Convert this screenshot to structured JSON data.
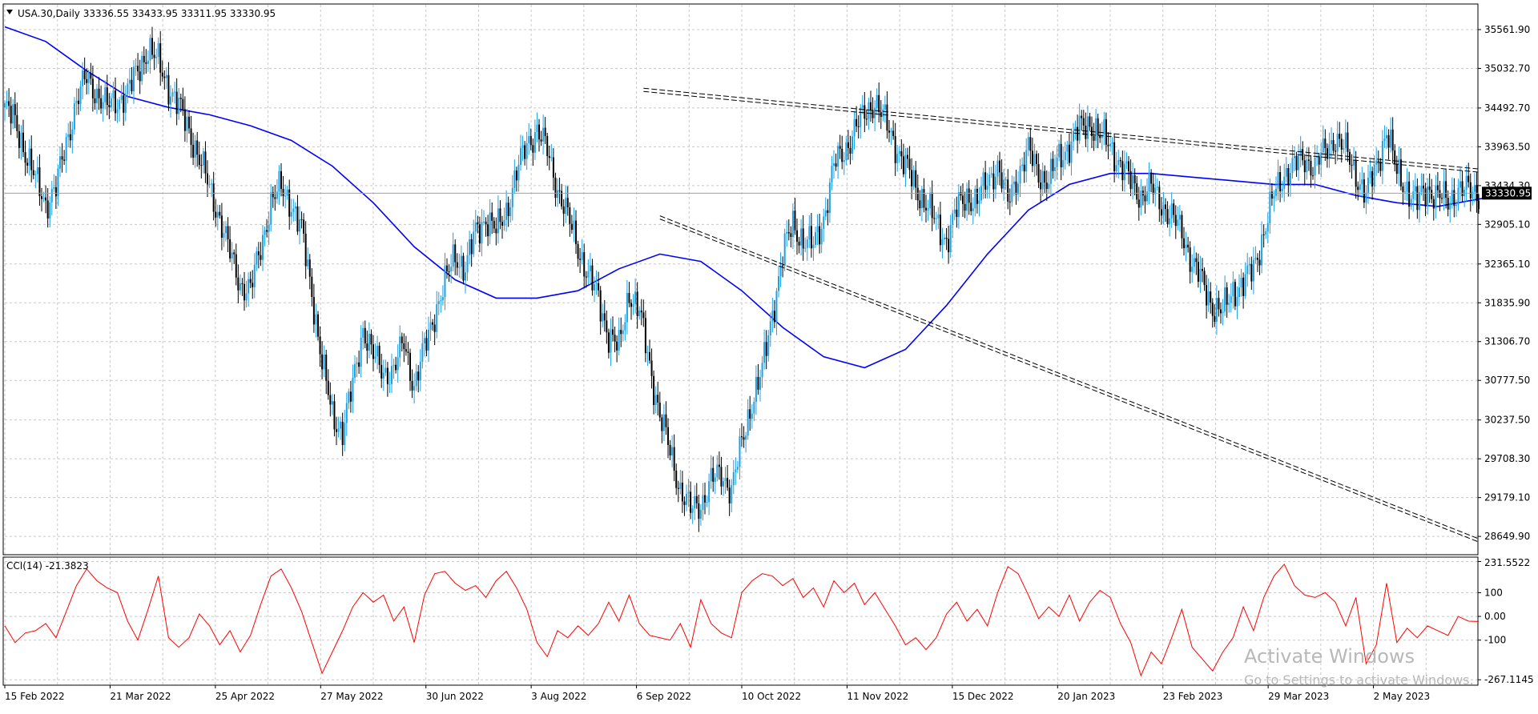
{
  "header": {
    "main_title": "USA.30,Daily  33336.55 33433.95 33311.95 33330.95",
    "indicator_title": "CCI(14) -21.3823"
  },
  "colors": {
    "bull_candle": "#1ea0e6",
    "bear_candle": "#000000",
    "moving_average": "#0000ff",
    "cci_line": "#ff0000",
    "grid": "#c8c8c8",
    "trendline": "#000000",
    "price_tag_bg": "#000000",
    "price_tag_text": "#ffffff"
  },
  "watermark": {
    "title": "Activate Windows",
    "subtitle": "Go to Settings to activate Windows."
  },
  "chart_data": [
    {
      "type": "candlestick",
      "symbol": "USA.30",
      "timeframe": "Daily",
      "ohlc_last": {
        "open": 33336.55,
        "high": 33433.95,
        "low": 33311.95,
        "close": 33330.95
      },
      "current_price_label": "33330.95",
      "ylim": [
        28400,
        35900
      ],
      "y_ticks": [
        28649.9,
        29179.1,
        29708.3,
        30237.5,
        30777.5,
        31306.7,
        31835.9,
        32365.1,
        32905.1,
        33434.3,
        33963.5,
        34492.7,
        35032.7,
        35561.9
      ],
      "y_tick_labels": [
        "28649.90",
        "29179.10",
        "29708.30",
        "30237.50",
        "30777.50",
        "31306.70",
        "31835.90",
        "32365.10",
        "32905.10",
        "33434.30",
        "33963.50",
        "34492.70",
        "35032.70",
        "35561.90"
      ],
      "x_tick_labels": [
        "15 Feb 2022",
        "21 Mar 2022",
        "25 Apr 2022",
        "27 May 2022",
        "30 Jun 2022",
        "3 Aug 2022",
        "6 Sep 2022",
        "10 Oct 2022",
        "11 Nov 2022",
        "15 Dec 2022",
        "20 Jan 2023",
        "23 Feb 2023",
        "29 Mar 2023",
        "2 May 2023"
      ],
      "grid": true,
      "price_path": [
        [
          0,
          34500
        ],
        [
          5,
          34300
        ],
        [
          10,
          33900
        ],
        [
          15,
          33500
        ],
        [
          20,
          33200
        ],
        [
          25,
          33400
        ],
        [
          30,
          34000
        ],
        [
          35,
          34600
        ],
        [
          40,
          34900
        ],
        [
          45,
          34700
        ],
        [
          50,
          34500
        ],
        [
          55,
          34600
        ],
        [
          60,
          34700
        ],
        [
          65,
          35000
        ],
        [
          70,
          35300
        ],
        [
          75,
          35100
        ],
        [
          80,
          34800
        ],
        [
          85,
          34500
        ],
        [
          90,
          34200
        ],
        [
          95,
          33800
        ],
        [
          100,
          33400
        ],
        [
          105,
          33000
        ],
        [
          110,
          32500
        ],
        [
          115,
          32100
        ],
        [
          120,
          32000
        ],
        [
          125,
          32600
        ],
        [
          130,
          33200
        ],
        [
          135,
          33400
        ],
        [
          140,
          33200
        ],
        [
          145,
          32800
        ],
        [
          150,
          32000
        ],
        [
          155,
          31000
        ],
        [
          160,
          30300
        ],
        [
          165,
          30100
        ],
        [
          170,
          30700
        ],
        [
          175,
          31500
        ],
        [
          180,
          31100
        ],
        [
          185,
          30900
        ],
        [
          190,
          30900
        ],
        [
          195,
          31300
        ],
        [
          200,
          30700
        ],
        [
          205,
          31200
        ],
        [
          210,
          31700
        ],
        [
          215,
          32100
        ],
        [
          220,
          32500
        ],
        [
          225,
          32300
        ],
        [
          230,
          32800
        ],
        [
          235,
          33000
        ],
        [
          240,
          32800
        ],
        [
          245,
          33100
        ],
        [
          250,
          33600
        ],
        [
          255,
          34000
        ],
        [
          260,
          34200
        ],
        [
          265,
          33900
        ],
        [
          270,
          33400
        ],
        [
          275,
          33000
        ],
        [
          280,
          32600
        ],
        [
          285,
          32200
        ],
        [
          290,
          31900
        ],
        [
          295,
          31400
        ],
        [
          300,
          31200
        ],
        [
          305,
          32000
        ],
        [
          310,
          31700
        ],
        [
          315,
          31000
        ],
        [
          320,
          30300
        ],
        [
          325,
          29800
        ],
        [
          330,
          29300
        ],
        [
          335,
          29000
        ],
        [
          340,
          29100
        ],
        [
          345,
          29400
        ],
        [
          350,
          29500
        ],
        [
          355,
          29300
        ],
        [
          360,
          29900
        ],
        [
          365,
          30500
        ],
        [
          370,
          30900
        ],
        [
          375,
          31700
        ],
        [
          380,
          32500
        ],
        [
          385,
          32900
        ],
        [
          390,
          32700
        ],
        [
          395,
          32600
        ],
        [
          400,
          33000
        ],
        [
          405,
          33700
        ],
        [
          410,
          33900
        ],
        [
          415,
          34200
        ],
        [
          420,
          34400
        ],
        [
          425,
          34600
        ],
        [
          430,
          34300
        ],
        [
          435,
          34000
        ],
        [
          440,
          33700
        ],
        [
          445,
          33400
        ],
        [
          450,
          33200
        ],
        [
          455,
          32900
        ],
        [
          460,
          32700
        ],
        [
          465,
          33100
        ],
        [
          470,
          33300
        ],
        [
          475,
          33200
        ],
        [
          480,
          33500
        ],
        [
          485,
          33700
        ],
        [
          490,
          33200
        ],
        [
          495,
          33600
        ],
        [
          500,
          33900
        ],
        [
          505,
          33600
        ],
        [
          510,
          33500
        ],
        [
          515,
          33800
        ],
        [
          520,
          34000
        ],
        [
          525,
          34200
        ],
        [
          530,
          34300
        ],
        [
          535,
          34100
        ],
        [
          540,
          34000
        ],
        [
          545,
          33700
        ],
        [
          550,
          33500
        ],
        [
          555,
          33300
        ],
        [
          560,
          33400
        ],
        [
          565,
          33200
        ],
        [
          570,
          33000
        ],
        [
          575,
          32800
        ],
        [
          580,
          32400
        ],
        [
          585,
          32100
        ],
        [
          590,
          31800
        ],
        [
          595,
          31700
        ],
        [
          600,
          32000
        ],
        [
          605,
          32100
        ],
        [
          610,
          32300
        ],
        [
          615,
          32800
        ],
        [
          620,
          33300
        ],
        [
          625,
          33600
        ],
        [
          630,
          33700
        ],
        [
          635,
          33800
        ],
        [
          640,
          33700
        ],
        [
          645,
          33900
        ],
        [
          650,
          34100
        ],
        [
          655,
          33900
        ],
        [
          660,
          33600
        ],
        [
          665,
          33300
        ],
        [
          670,
          33700
        ],
        [
          675,
          34200
        ],
        [
          680,
          33600
        ],
        [
          685,
          33400
        ],
        [
          690,
          33200
        ],
        [
          695,
          33400
        ],
        [
          700,
          33300
        ],
        [
          705,
          33200
        ],
        [
          710,
          33400
        ],
        [
          715,
          33350
        ],
        [
          720,
          33330
        ]
      ],
      "moving_average_path": [
        [
          0,
          35600
        ],
        [
          20,
          35400
        ],
        [
          40,
          35000
        ],
        [
          60,
          34650
        ],
        [
          80,
          34500
        ],
        [
          100,
          34400
        ],
        [
          120,
          34250
        ],
        [
          140,
          34050
        ],
        [
          160,
          33700
        ],
        [
          180,
          33200
        ],
        [
          200,
          32600
        ],
        [
          220,
          32150
        ],
        [
          240,
          31900
        ],
        [
          260,
          31900
        ],
        [
          280,
          32000
        ],
        [
          300,
          32300
        ],
        [
          320,
          32500
        ],
        [
          340,
          32400
        ],
        [
          360,
          32000
        ],
        [
          380,
          31500
        ],
        [
          400,
          31100
        ],
        [
          420,
          30950
        ],
        [
          440,
          31200
        ],
        [
          460,
          31800
        ],
        [
          480,
          32500
        ],
        [
          500,
          33100
        ],
        [
          520,
          33450
        ],
        [
          540,
          33600
        ],
        [
          560,
          33600
        ],
        [
          580,
          33550
        ],
        [
          600,
          33500
        ],
        [
          620,
          33450
        ],
        [
          640,
          33450
        ],
        [
          660,
          33300
        ],
        [
          680,
          33200
        ],
        [
          700,
          33150
        ],
        [
          720,
          33250
        ],
        [
          730,
          33300
        ]
      ],
      "trendlines": [
        {
          "name": "upper-channel",
          "from": [
            312,
            34740
          ],
          "to": [
            740,
            33640
          ]
        },
        {
          "name": "lower-channel",
          "from": [
            320,
            33000
          ],
          "to": [
            720,
            28600
          ]
        }
      ]
    },
    {
      "type": "line",
      "name": "CCI(14)",
      "current_value": -21.3823,
      "ylim": [
        -290,
        250
      ],
      "y_ticks": [
        231.5522,
        100,
        0,
        -100,
        -267.1145
      ],
      "y_tick_labels": [
        "231.5522",
        "100",
        "0.00",
        "-100",
        "-267.1145"
      ],
      "grid": true,
      "values": [
        [
          0,
          -40
        ],
        [
          5,
          -110
        ],
        [
          10,
          -70
        ],
        [
          15,
          -60
        ],
        [
          20,
          -30
        ],
        [
          25,
          -90
        ],
        [
          30,
          20
        ],
        [
          35,
          130
        ],
        [
          40,
          200
        ],
        [
          45,
          150
        ],
        [
          50,
          120
        ],
        [
          55,
          100
        ],
        [
          60,
          -20
        ],
        [
          65,
          -100
        ],
        [
          70,
          30
        ],
        [
          75,
          170
        ],
        [
          80,
          -90
        ],
        [
          85,
          -130
        ],
        [
          90,
          -90
        ],
        [
          95,
          10
        ],
        [
          100,
          -40
        ],
        [
          105,
          -120
        ],
        [
          110,
          -60
        ],
        [
          115,
          -150
        ],
        [
          120,
          -80
        ],
        [
          125,
          50
        ],
        [
          130,
          170
        ],
        [
          135,
          200
        ],
        [
          140,
          120
        ],
        [
          145,
          20
        ],
        [
          150,
          -110
        ],
        [
          155,
          -240
        ],
        [
          160,
          -150
        ],
        [
          165,
          -60
        ],
        [
          170,
          40
        ],
        [
          175,
          100
        ],
        [
          180,
          60
        ],
        [
          185,
          90
        ],
        [
          190,
          -20
        ],
        [
          195,
          40
        ],
        [
          200,
          -110
        ],
        [
          205,
          90
        ],
        [
          210,
          180
        ],
        [
          215,
          190
        ],
        [
          220,
          140
        ],
        [
          225,
          110
        ],
        [
          230,
          130
        ],
        [
          235,
          80
        ],
        [
          240,
          150
        ],
        [
          245,
          190
        ],
        [
          250,
          120
        ],
        [
          255,
          30
        ],
        [
          260,
          -110
        ],
        [
          265,
          -170
        ],
        [
          270,
          -60
        ],
        [
          275,
          -90
        ],
        [
          280,
          -40
        ],
        [
          285,
          -80
        ],
        [
          290,
          -30
        ],
        [
          295,
          60
        ],
        [
          300,
          -20
        ],
        [
          305,
          90
        ],
        [
          310,
          -30
        ],
        [
          315,
          -80
        ],
        [
          320,
          -90
        ],
        [
          325,
          -100
        ],
        [
          330,
          -30
        ],
        [
          335,
          -130
        ],
        [
          340,
          70
        ],
        [
          345,
          -30
        ],
        [
          350,
          -70
        ],
        [
          355,
          -90
        ],
        [
          360,
          100
        ],
        [
          365,
          150
        ],
        [
          370,
          180
        ],
        [
          375,
          170
        ],
        [
          380,
          130
        ],
        [
          385,
          160
        ],
        [
          390,
          80
        ],
        [
          395,
          120
        ],
        [
          400,
          40
        ],
        [
          405,
          150
        ],
        [
          410,
          100
        ],
        [
          415,
          140
        ],
        [
          420,
          50
        ],
        [
          425,
          100
        ],
        [
          430,
          30
        ],
        [
          435,
          -40
        ],
        [
          440,
          -120
        ],
        [
          445,
          -90
        ],
        [
          450,
          -140
        ],
        [
          455,
          -90
        ],
        [
          460,
          10
        ],
        [
          465,
          60
        ],
        [
          470,
          -20
        ],
        [
          475,
          30
        ],
        [
          480,
          -40
        ],
        [
          485,
          100
        ],
        [
          490,
          210
        ],
        [
          495,
          180
        ],
        [
          500,
          90
        ],
        [
          505,
          -10
        ],
        [
          510,
          40
        ],
        [
          515,
          0
        ],
        [
          520,
          90
        ],
        [
          525,
          -20
        ],
        [
          530,
          60
        ],
        [
          535,
          110
        ],
        [
          540,
          80
        ],
        [
          545,
          -30
        ],
        [
          550,
          -110
        ],
        [
          555,
          -250
        ],
        [
          560,
          -150
        ],
        [
          565,
          -200
        ],
        [
          570,
          -90
        ],
        [
          575,
          30
        ],
        [
          580,
          -130
        ],
        [
          585,
          -180
        ],
        [
          590,
          -230
        ],
        [
          595,
          -150
        ],
        [
          600,
          -90
        ],
        [
          605,
          40
        ],
        [
          610,
          -60
        ],
        [
          615,
          80
        ],
        [
          620,
          170
        ],
        [
          625,
          220
        ],
        [
          630,
          130
        ],
        [
          635,
          90
        ],
        [
          640,
          80
        ],
        [
          645,
          100
        ],
        [
          650,
          60
        ],
        [
          655,
          -40
        ],
        [
          660,
          80
        ],
        [
          665,
          -200
        ],
        [
          670,
          -120
        ],
        [
          675,
          140
        ],
        [
          680,
          -110
        ],
        [
          685,
          -50
        ],
        [
          690,
          -90
        ],
        [
          695,
          -40
        ],
        [
          700,
          -60
        ],
        [
          705,
          -80
        ],
        [
          710,
          0
        ],
        [
          715,
          -20
        ],
        [
          720,
          -21.3823
        ]
      ]
    }
  ]
}
